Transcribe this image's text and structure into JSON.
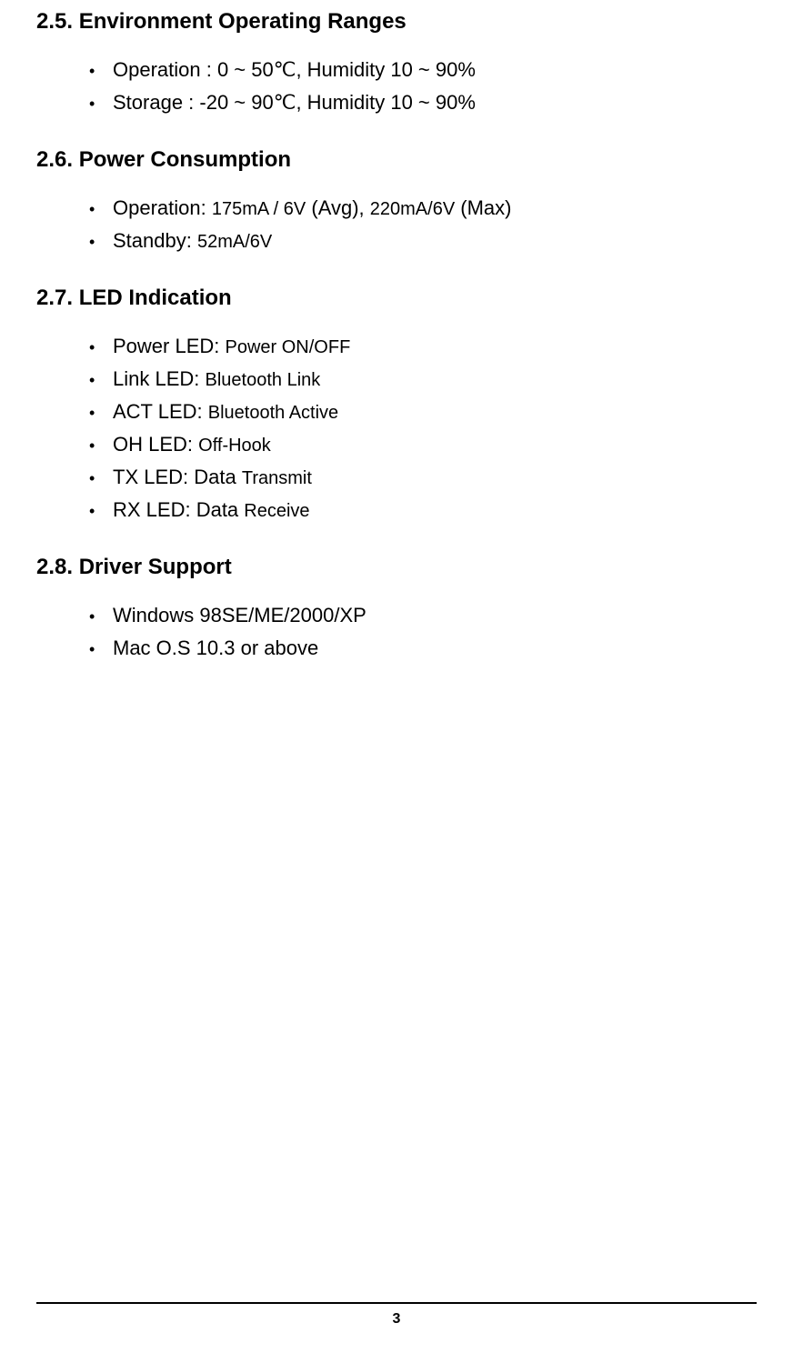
{
  "section25": {
    "title": "2.5. Environment Operating Ranges",
    "items": [
      "Operation : 0 ~ 50℃, Humidity    10 ~ 90%",
      "Storage : -20 ~ 90℃, Humidity    10 ~ 90%"
    ]
  },
  "section26": {
    "title": "2.6. Power Consumption",
    "items": [
      {
        "prefix": "Operation: ",
        "small1": "175mA / 6V",
        "mid": " (Avg), ",
        "small2": "220mA/6V",
        "suffix": " (Max)"
      },
      {
        "prefix": "Standby: ",
        "small1": "52mA/6V",
        "mid": "",
        "small2": "",
        "suffix": ""
      }
    ]
  },
  "section27": {
    "title": "2.7. LED Indication",
    "items": [
      {
        "prefix": "Power LED: ",
        "small": "Power ON/OFF"
      },
      {
        "prefix": "Link LED: ",
        "small": "Bluetooth Link"
      },
      {
        "prefix": "ACT LED: ",
        "small": "Bluetooth Active"
      },
      {
        "prefix": "OH LED: ",
        "small": "Off-Hook"
      },
      {
        "prefix": "TX LED: Data ",
        "small": "Transmit"
      },
      {
        "prefix": "RX LED: Data ",
        "small": "Receive"
      }
    ]
  },
  "section28": {
    "title": "2.8. Driver Support",
    "items": [
      "Windows 98SE/ME/2000/XP",
      "Mac O.S 10.3 or above"
    ]
  },
  "page_number": "3"
}
